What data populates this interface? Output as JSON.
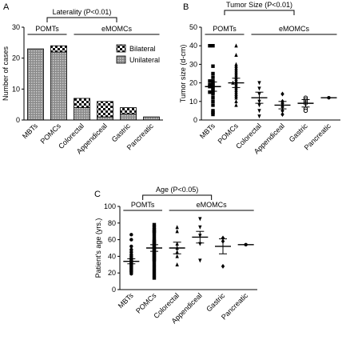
{
  "chart_data": [
    {
      "panel": "A",
      "type": "bar",
      "stacked": true,
      "title": "Laterality (P<0.01)",
      "ylabel": "Number of cases",
      "ylim": [
        0,
        30
      ],
      "yticks": [
        0,
        10,
        20,
        30
      ],
      "categories": [
        "MBTs",
        "POMCs",
        "Colorectal",
        "Appendiceal",
        "Gastric",
        "Pancreatic"
      ],
      "series": [
        {
          "name": "Unilateral",
          "values": [
            23,
            22,
            4,
            1,
            2,
            1
          ]
        },
        {
          "name": "Bilateral",
          "values": [
            0,
            2,
            3,
            5,
            2,
            0
          ]
        }
      ],
      "group_labels": [
        {
          "label": "POMTs",
          "from": 0,
          "to": 1
        },
        {
          "label": "eMOMCs",
          "from": 2,
          "to": 5
        }
      ],
      "legend": "top-right",
      "grid": false
    },
    {
      "panel": "B",
      "type": "scatter",
      "title": "Tumor Size (P<0.01)",
      "ylabel": "Tumor size (d-cm)",
      "ylim": [
        0,
        50
      ],
      "yticks": [
        0,
        10,
        20,
        30,
        40,
        50
      ],
      "categories": [
        "MBTs",
        "POMCs",
        "Colorectal",
        "Appendiceal",
        "Gastric",
        "Pancreatic"
      ],
      "group_labels": [
        {
          "label": "POMTs",
          "from": 0,
          "to": 1
        },
        {
          "label": "eMOMCs",
          "from": 2,
          "to": 5
        }
      ],
      "groups": [
        {
          "marker": "square",
          "mean": 18,
          "sem": 2.5,
          "points": [
            40,
            40,
            29,
            25,
            23,
            21,
            21,
            20,
            19,
            19,
            18,
            18,
            17,
            16,
            15,
            15,
            14,
            12,
            10,
            8,
            5,
            4,
            3
          ]
        },
        {
          "marker": "triangle-up",
          "mean": 20,
          "sem": 2.5,
          "points": [
            40,
            35,
            30,
            29,
            28,
            27,
            26,
            25,
            24,
            23,
            22,
            21,
            20,
            20,
            19,
            18,
            17,
            16,
            15,
            14,
            13,
            12,
            10,
            8
          ]
        },
        {
          "marker": "triangle-down",
          "mean": 12,
          "sem": 3,
          "points": [
            20,
            17,
            14,
            10,
            8,
            5,
            2
          ]
        },
        {
          "marker": "diamond",
          "mean": 8,
          "sem": 2,
          "points": [
            14,
            10,
            9,
            8,
            7,
            5,
            3
          ]
        },
        {
          "marker": "circle-open",
          "mean": 9,
          "sem": 2,
          "points": [
            12,
            11,
            10,
            9,
            6,
            5
          ]
        },
        {
          "marker": "circle",
          "mean": 12,
          "sem": 0,
          "points": [
            12
          ]
        }
      ],
      "grid": false
    },
    {
      "panel": "C",
      "type": "scatter",
      "title": "Age (P<0.05)",
      "ylabel": "Patient's age (yrs.)",
      "ylim": [
        0,
        100
      ],
      "yticks": [
        0,
        20,
        40,
        60,
        80,
        100
      ],
      "categories": [
        "MBTs",
        "POMCs",
        "Colorectal",
        "Appendiceal",
        "Gastric",
        "Pancreatic"
      ],
      "group_labels": [
        {
          "label": "POMTs",
          "from": 0,
          "to": 1
        },
        {
          "label": "eMOMCs",
          "from": 2,
          "to": 5
        }
      ],
      "groups": [
        {
          "marker": "circle",
          "mean": 34,
          "sem": 3,
          "points": [
            66,
            60,
            52,
            48,
            45,
            42,
            40,
            38,
            36,
            35,
            34,
            33,
            32,
            31,
            30,
            29,
            28,
            27,
            26,
            25,
            24,
            23,
            22,
            21,
            19
          ]
        },
        {
          "marker": "square",
          "mean": 50,
          "sem": 4,
          "points": [
            78,
            75,
            72,
            70,
            68,
            64,
            60,
            58,
            56,
            54,
            52,
            50,
            48,
            46,
            44,
            42,
            40,
            38,
            36,
            34,
            30,
            26,
            22,
            18,
            14
          ]
        },
        {
          "marker": "triangle-up",
          "mean": 50,
          "sem": 7,
          "points": [
            75,
            70,
            55,
            50,
            45,
            40,
            30
          ]
        },
        {
          "marker": "triangle-down",
          "mean": 63,
          "sem": 7,
          "points": [
            85,
            75,
            65,
            55,
            35
          ]
        },
        {
          "marker": "diamond",
          "mean": 52,
          "sem": 9,
          "points": [
            62,
            58,
            28
          ]
        },
        {
          "marker": "circle",
          "mean": 54,
          "sem": 0,
          "points": [
            54
          ]
        }
      ],
      "grid": false
    }
  ],
  "panels": {
    "a": {
      "letter": "A"
    },
    "b": {
      "letter": "B"
    },
    "c": {
      "letter": "C"
    }
  }
}
